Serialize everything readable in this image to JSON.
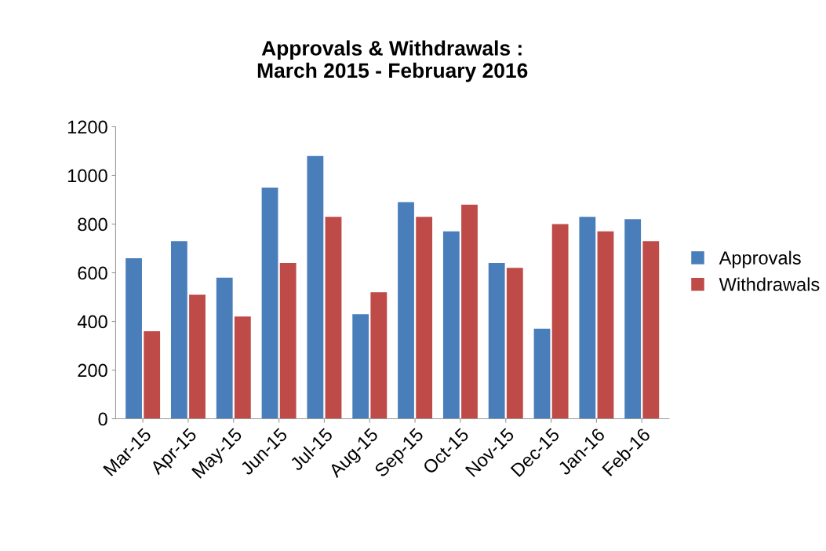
{
  "chart_data": {
    "type": "bar",
    "title": "Approvals & Withdrawals :\nMarch 2015 - February 2016",
    "categories": [
      "Mar-15",
      "Apr-15",
      "May-15",
      "Jun-15",
      "Jul-15",
      "Aug-15",
      "Sep-15",
      "Oct-15",
      "Nov-15",
      "Dec-15",
      "Jan-16",
      "Feb-16"
    ],
    "series": [
      {
        "name": "Approvals",
        "color": "#4a7ebb",
        "values": [
          660,
          730,
          580,
          950,
          1080,
          430,
          890,
          770,
          640,
          370,
          830,
          820
        ]
      },
      {
        "name": "Withdrawals",
        "color": "#be4b48",
        "values": [
          360,
          510,
          420,
          640,
          830,
          520,
          830,
          880,
          620,
          800,
          770,
          730
        ]
      }
    ],
    "ylim": [
      0,
      1200
    ],
    "yticks": [
      0,
      200,
      400,
      600,
      800,
      1000,
      1200
    ],
    "grid": false,
    "legend": "right"
  }
}
